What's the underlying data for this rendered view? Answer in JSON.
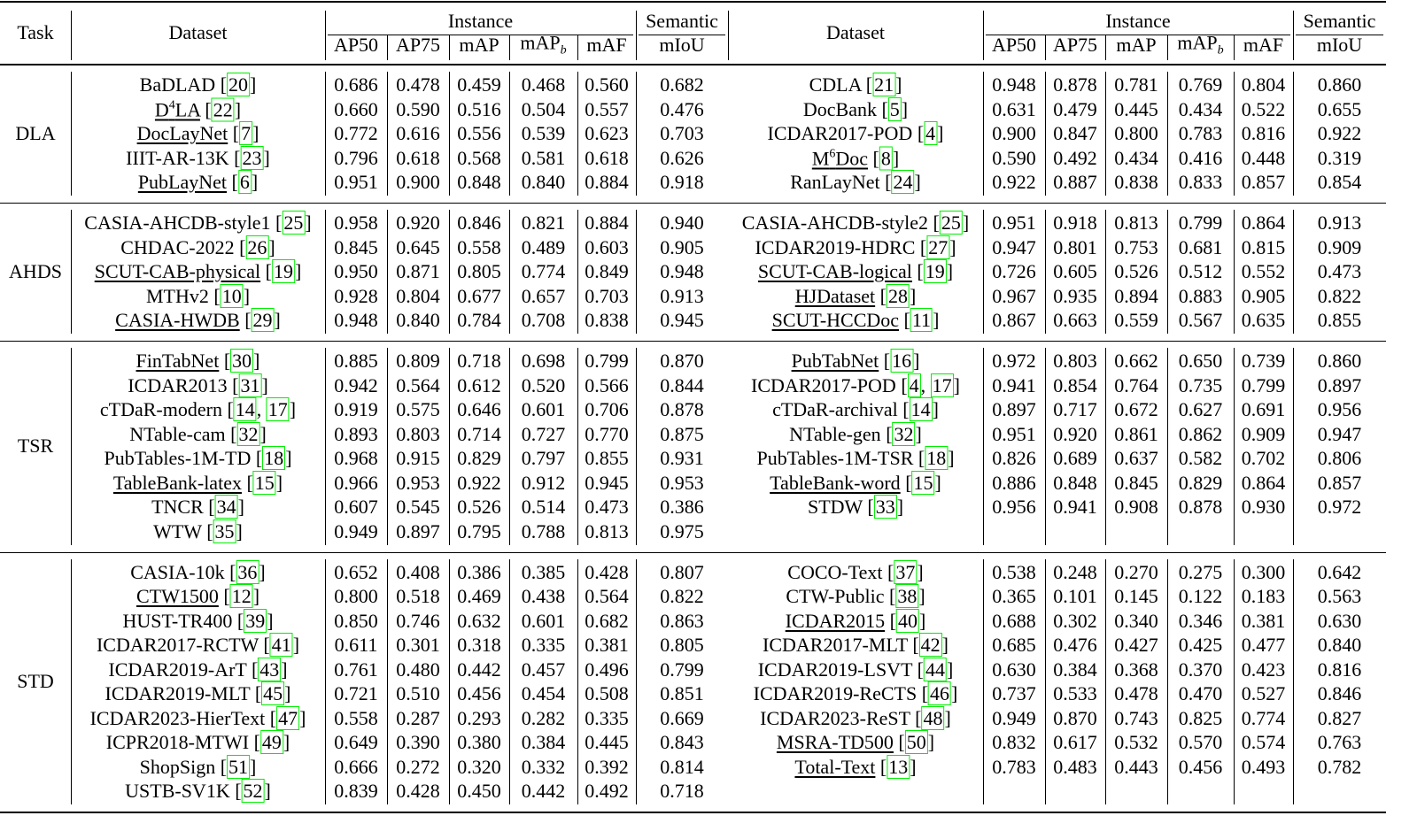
{
  "header": {
    "task": "Task",
    "left": {
      "dataset": "Dataset",
      "instance": "Instance",
      "semantic": "Semantic",
      "metrics": [
        "AP50",
        "AP75",
        "mAP",
        {
          "base": "mAP",
          "sub": "b"
        },
        "mAF",
        "mIoU"
      ]
    },
    "right": {
      "dataset": "Dataset",
      "instance": "Instance",
      "semantic": "Semantic",
      "metrics": [
        "AP50",
        "AP75",
        "mAP",
        {
          "base": "mAP",
          "sub": "b"
        },
        "mAF",
        "mIoU"
      ]
    }
  },
  "ref_brackets": [
    "[",
    "]"
  ],
  "ref_separator": ", ",
  "groups": [
    {
      "task": "DLA",
      "left": [
        {
          "name": "BaDLAD",
          "refs": [
            "20"
          ],
          "values": [
            "0.686",
            "0.478",
            "0.459",
            "0.468",
            "0.560",
            "0.682"
          ]
        },
        {
          "name": {
            "base": "D",
            "sup": "4",
            "rest": "LA"
          },
          "underline": true,
          "refs": [
            "22"
          ],
          "values": [
            "0.660",
            "0.590",
            "0.516",
            "0.504",
            "0.557",
            "0.476"
          ]
        },
        {
          "name": "DocLayNet",
          "underline": true,
          "refs": [
            "7"
          ],
          "values": [
            "0.772",
            "0.616",
            "0.556",
            "0.539",
            "0.623",
            "0.703"
          ]
        },
        {
          "name": "IIIT-AR-13K",
          "refs": [
            "23"
          ],
          "values": [
            "0.796",
            "0.618",
            "0.568",
            "0.581",
            "0.618",
            "0.626"
          ]
        },
        {
          "name": "PubLayNet",
          "underline": true,
          "refs": [
            "6"
          ],
          "values": [
            "0.951",
            "0.900",
            "0.848",
            "0.840",
            "0.884",
            "0.918"
          ]
        }
      ],
      "right": [
        {
          "name": "CDLA",
          "refs": [
            "21"
          ],
          "values": [
            "0.948",
            "0.878",
            "0.781",
            "0.769",
            "0.804",
            "0.860"
          ]
        },
        {
          "name": "DocBank",
          "refs": [
            "5"
          ],
          "values": [
            "0.631",
            "0.479",
            "0.445",
            "0.434",
            "0.522",
            "0.655"
          ]
        },
        {
          "name": "ICDAR2017-POD",
          "refs": [
            "4"
          ],
          "values": [
            "0.900",
            "0.847",
            "0.800",
            "0.783",
            "0.816",
            "0.922"
          ]
        },
        {
          "name": {
            "base": "M",
            "sup": "6",
            "rest": "Doc"
          },
          "underline": true,
          "refs": [
            "8"
          ],
          "values": [
            "0.590",
            "0.492",
            "0.434",
            "0.416",
            "0.448",
            "0.319"
          ]
        },
        {
          "name": "RanLayNet",
          "refs": [
            "24"
          ],
          "values": [
            "0.922",
            "0.887",
            "0.838",
            "0.833",
            "0.857",
            "0.854"
          ]
        }
      ]
    },
    {
      "task": "AHDS",
      "left": [
        {
          "name": "CASIA-AHCDB-style1",
          "refs": [
            "25"
          ],
          "values": [
            "0.958",
            "0.920",
            "0.846",
            "0.821",
            "0.884",
            "0.940"
          ]
        },
        {
          "name": "CHDAC-2022",
          "refs": [
            "26"
          ],
          "values": [
            "0.845",
            "0.645",
            "0.558",
            "0.489",
            "0.603",
            "0.905"
          ]
        },
        {
          "name": "SCUT-CAB-physical",
          "underline": true,
          "refs": [
            "19"
          ],
          "values": [
            "0.950",
            "0.871",
            "0.805",
            "0.774",
            "0.849",
            "0.948"
          ]
        },
        {
          "name": "MTHv2",
          "refs": [
            "10"
          ],
          "values": [
            "0.928",
            "0.804",
            "0.677",
            "0.657",
            "0.703",
            "0.913"
          ]
        },
        {
          "name": "CASIA-HWDB",
          "underline": true,
          "refs": [
            "29"
          ],
          "values": [
            "0.948",
            "0.840",
            "0.784",
            "0.708",
            "0.838",
            "0.945"
          ]
        }
      ],
      "right": [
        {
          "name": "CASIA-AHCDB-style2",
          "refs": [
            "25"
          ],
          "values": [
            "0.951",
            "0.918",
            "0.813",
            "0.799",
            "0.864",
            "0.913"
          ]
        },
        {
          "name": "ICDAR2019-HDRC",
          "refs": [
            "27"
          ],
          "values": [
            "0.947",
            "0.801",
            "0.753",
            "0.681",
            "0.815",
            "0.909"
          ]
        },
        {
          "name": "SCUT-CAB-logical",
          "underline": true,
          "refs": [
            "19"
          ],
          "values": [
            "0.726",
            "0.605",
            "0.526",
            "0.512",
            "0.552",
            "0.473"
          ]
        },
        {
          "name": "HJDataset",
          "underline": true,
          "refs": [
            "28"
          ],
          "values": [
            "0.967",
            "0.935",
            "0.894",
            "0.883",
            "0.905",
            "0.822"
          ]
        },
        {
          "name": "SCUT-HCCDoc",
          "underline": true,
          "refs": [
            "11"
          ],
          "values": [
            "0.867",
            "0.663",
            "0.559",
            "0.567",
            "0.635",
            "0.855"
          ]
        }
      ]
    },
    {
      "task": "TSR",
      "left": [
        {
          "name": "FinTabNet",
          "underline": true,
          "refs": [
            "30"
          ],
          "values": [
            "0.885",
            "0.809",
            "0.718",
            "0.698",
            "0.799",
            "0.870"
          ]
        },
        {
          "name": "ICDAR2013",
          "refs": [
            "31"
          ],
          "values": [
            "0.942",
            "0.564",
            "0.612",
            "0.520",
            "0.566",
            "0.844"
          ]
        },
        {
          "name": "cTDaR-modern",
          "refs": [
            "14",
            "17"
          ],
          "values": [
            "0.919",
            "0.575",
            "0.646",
            "0.601",
            "0.706",
            "0.878"
          ]
        },
        {
          "name": "NTable-cam",
          "refs": [
            "32"
          ],
          "values": [
            "0.893",
            "0.803",
            "0.714",
            "0.727",
            "0.770",
            "0.875"
          ]
        },
        {
          "name": "PubTables-1M-TD",
          "refs": [
            "18"
          ],
          "values": [
            "0.968",
            "0.915",
            "0.829",
            "0.797",
            "0.855",
            "0.931"
          ]
        },
        {
          "name": "TableBank-latex",
          "underline": true,
          "refs": [
            "15"
          ],
          "values": [
            "0.966",
            "0.953",
            "0.922",
            "0.912",
            "0.945",
            "0.953"
          ]
        },
        {
          "name": "TNCR",
          "refs": [
            "34"
          ],
          "values": [
            "0.607",
            "0.545",
            "0.526",
            "0.514",
            "0.473",
            "0.386"
          ]
        },
        {
          "name": "WTW",
          "refs": [
            "35"
          ],
          "values": [
            "0.949",
            "0.897",
            "0.795",
            "0.788",
            "0.813",
            "0.975"
          ]
        }
      ],
      "right": [
        {
          "name": "PubTabNet",
          "underline": true,
          "refs": [
            "16"
          ],
          "values": [
            "0.972",
            "0.803",
            "0.662",
            "0.650",
            "0.739",
            "0.860"
          ]
        },
        {
          "name": "ICDAR2017-POD",
          "refs": [
            "4",
            "17"
          ],
          "values": [
            "0.941",
            "0.854",
            "0.764",
            "0.735",
            "0.799",
            "0.897"
          ]
        },
        {
          "name": "cTDaR-archival",
          "refs": [
            "14"
          ],
          "values": [
            "0.897",
            "0.717",
            "0.672",
            "0.627",
            "0.691",
            "0.956"
          ]
        },
        {
          "name": "NTable-gen",
          "refs": [
            "32"
          ],
          "values": [
            "0.951",
            "0.920",
            "0.861",
            "0.862",
            "0.909",
            "0.947"
          ]
        },
        {
          "name": "PubTables-1M-TSR",
          "refs": [
            "18"
          ],
          "values": [
            "0.826",
            "0.689",
            "0.637",
            "0.582",
            "0.702",
            "0.806"
          ]
        },
        {
          "name": "TableBank-word",
          "underline": true,
          "refs": [
            "15"
          ],
          "values": [
            "0.886",
            "0.848",
            "0.845",
            "0.829",
            "0.864",
            "0.857"
          ]
        },
        {
          "name": "STDW",
          "refs": [
            "33"
          ],
          "values": [
            "0.956",
            "0.941",
            "0.908",
            "0.878",
            "0.930",
            "0.972"
          ]
        }
      ]
    },
    {
      "task": "STD",
      "left": [
        {
          "name": "CASIA-10k",
          "refs": [
            "36"
          ],
          "values": [
            "0.652",
            "0.408",
            "0.386",
            "0.385",
            "0.428",
            "0.807"
          ]
        },
        {
          "name": "CTW1500",
          "underline": true,
          "refs": [
            "12"
          ],
          "values": [
            "0.800",
            "0.518",
            "0.469",
            "0.438",
            "0.564",
            "0.822"
          ]
        },
        {
          "name": "HUST-TR400",
          "refs": [
            "39"
          ],
          "values": [
            "0.850",
            "0.746",
            "0.632",
            "0.601",
            "0.682",
            "0.863"
          ]
        },
        {
          "name": "ICDAR2017-RCTW",
          "refs": [
            "41"
          ],
          "values": [
            "0.611",
            "0.301",
            "0.318",
            "0.335",
            "0.381",
            "0.805"
          ]
        },
        {
          "name": "ICDAR2019-ArT",
          "refs": [
            "43"
          ],
          "values": [
            "0.761",
            "0.480",
            "0.442",
            "0.457",
            "0.496",
            "0.799"
          ]
        },
        {
          "name": "ICDAR2019-MLT",
          "refs": [
            "45"
          ],
          "values": [
            "0.721",
            "0.510",
            "0.456",
            "0.454",
            "0.508",
            "0.851"
          ]
        },
        {
          "name": "ICDAR2023-HierText",
          "refs": [
            "47"
          ],
          "values": [
            "0.558",
            "0.287",
            "0.293",
            "0.282",
            "0.335",
            "0.669"
          ]
        },
        {
          "name": "ICPR2018-MTWI",
          "refs": [
            "49"
          ],
          "values": [
            "0.649",
            "0.390",
            "0.380",
            "0.384",
            "0.445",
            "0.843"
          ]
        },
        {
          "name": "ShopSign",
          "refs": [
            "51"
          ],
          "values": [
            "0.666",
            "0.272",
            "0.320",
            "0.332",
            "0.392",
            "0.814"
          ]
        },
        {
          "name": "USTB-SV1K",
          "refs": [
            "52"
          ],
          "values": [
            "0.839",
            "0.428",
            "0.450",
            "0.442",
            "0.492",
            "0.718"
          ]
        }
      ],
      "right": [
        {
          "name": "COCO-Text",
          "refs": [
            "37"
          ],
          "values": [
            "0.538",
            "0.248",
            "0.270",
            "0.275",
            "0.300",
            "0.642"
          ]
        },
        {
          "name": "CTW-Public",
          "refs": [
            "38"
          ],
          "values": [
            "0.365",
            "0.101",
            "0.145",
            "0.122",
            "0.183",
            "0.563"
          ]
        },
        {
          "name": "ICDAR2015",
          "underline": true,
          "refs": [
            "40"
          ],
          "values": [
            "0.688",
            "0.302",
            "0.340",
            "0.346",
            "0.381",
            "0.630"
          ]
        },
        {
          "name": "ICDAR2017-MLT",
          "refs": [
            "42"
          ],
          "values": [
            "0.685",
            "0.476",
            "0.427",
            "0.425",
            "0.477",
            "0.840"
          ]
        },
        {
          "name": "ICDAR2019-LSVT",
          "refs": [
            "44"
          ],
          "values": [
            "0.630",
            "0.384",
            "0.368",
            "0.370",
            "0.423",
            "0.816"
          ]
        },
        {
          "name": "ICDAR2019-ReCTS",
          "refs": [
            "46"
          ],
          "values": [
            "0.737",
            "0.533",
            "0.478",
            "0.470",
            "0.527",
            "0.846"
          ]
        },
        {
          "name": "ICDAR2023-ReST",
          "refs": [
            "48"
          ],
          "values": [
            "0.949",
            "0.870",
            "0.743",
            "0.825",
            "0.774",
            "0.827"
          ]
        },
        {
          "name": "MSRA-TD500",
          "underline": true,
          "refs": [
            "50"
          ],
          "values": [
            "0.832",
            "0.617",
            "0.532",
            "0.570",
            "0.574",
            "0.763"
          ]
        },
        {
          "name": "Total-Text",
          "underline": true,
          "refs": [
            "13"
          ],
          "values": [
            "0.783",
            "0.483",
            "0.443",
            "0.456",
            "0.493",
            "0.782"
          ]
        }
      ]
    }
  ]
}
